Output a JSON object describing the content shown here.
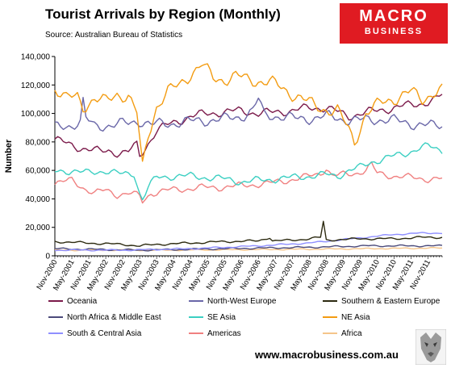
{
  "brand": {
    "line1": "MACRO",
    "line2": "BUSINESS",
    "line3": "",
    "website": "www.macrobusiness.com.au"
  },
  "chart_data": {
    "type": "line",
    "title": "Tourist Arrivals by Region (Monthly)",
    "subtitle": "Source: Australian Bureau of Statistics",
    "ylabel": "Number",
    "xlabel": "",
    "ylim": [
      0,
      140000
    ],
    "yticks": [
      0,
      20000,
      40000,
      60000,
      80000,
      100000,
      120000,
      140000
    ],
    "ytick_labels": [
      "0",
      "20,000",
      "40,000",
      "60,000",
      "80,000",
      "100,000",
      "120,000",
      "140,000"
    ],
    "xticks": [
      "Nov-2000",
      "May-2001",
      "Nov-2001",
      "May-2002",
      "Nov-2002",
      "May-2003",
      "Nov-2003",
      "May-2004",
      "Nov-2004",
      "May-2005",
      "Nov-2005",
      "May-2006",
      "Nov-2006",
      "May-2007",
      "Nov-2007",
      "May-2008",
      "Nov-2008",
      "May-2009",
      "Nov-2009",
      "May-2010",
      "Nov-2010",
      "May-2011",
      "Nov-2011"
    ],
    "grid": false,
    "legend_position": "bottom",
    "series": [
      {
        "name": "Oceania",
        "color": "#7b1a4a",
        "anchors": [
          [
            0,
            82000
          ],
          [
            5,
            78000
          ],
          [
            9,
            76000
          ],
          [
            12,
            75000
          ],
          [
            16,
            73000
          ],
          [
            19,
            74000
          ],
          [
            23,
            72000
          ],
          [
            26,
            73000
          ],
          [
            29,
            78000
          ],
          [
            30,
            70000
          ],
          [
            33,
            79000
          ],
          [
            36,
            88000
          ],
          [
            40,
            92000
          ],
          [
            44,
            95000
          ],
          [
            48,
            98000
          ],
          [
            54,
            100000
          ],
          [
            60,
            101000
          ],
          [
            66,
            102000
          ],
          [
            72,
            100000
          ],
          [
            78,
            101000
          ],
          [
            84,
            102000
          ],
          [
            90,
            104000
          ],
          [
            96,
            104000
          ],
          [
            100,
            101000
          ],
          [
            104,
            98000
          ],
          [
            108,
            100000
          ],
          [
            114,
            102000
          ],
          [
            120,
            104000
          ],
          [
            126,
            106000
          ],
          [
            132,
            108000
          ],
          [
            135,
            110000
          ],
          [
            137,
            113000
          ]
        ],
        "amp": 3500
      },
      {
        "name": "North-West Europe",
        "color": "#6a67a8",
        "anchors": [
          [
            0,
            90000
          ],
          [
            6,
            92000
          ],
          [
            9,
            94000
          ],
          [
            10,
            108000
          ],
          [
            11,
            96000
          ],
          [
            14,
            91000
          ],
          [
            20,
            92000
          ],
          [
            26,
            93000
          ],
          [
            30,
            95000
          ],
          [
            34,
            92000
          ],
          [
            40,
            93000
          ],
          [
            46,
            94000
          ],
          [
            52,
            95000
          ],
          [
            60,
            96000
          ],
          [
            66,
            98000
          ],
          [
            70,
            102000
          ],
          [
            72,
            110000
          ],
          [
            74,
            99000
          ],
          [
            80,
            98000
          ],
          [
            86,
            96000
          ],
          [
            92,
            97000
          ],
          [
            96,
            98000
          ],
          [
            102,
            96000
          ],
          [
            108,
            95000
          ],
          [
            114,
            96000
          ],
          [
            120,
            95000
          ],
          [
            126,
            93000
          ],
          [
            130,
            92000
          ],
          [
            134,
            91000
          ],
          [
            137,
            92000
          ]
        ],
        "amp": 4500
      },
      {
        "name": "Southern & Eastern Europe",
        "color": "#2c2a10",
        "anchors": [
          [
            0,
            10000
          ],
          [
            12,
            9000
          ],
          [
            24,
            8000
          ],
          [
            30,
            7000
          ],
          [
            36,
            8000
          ],
          [
            48,
            9000
          ],
          [
            60,
            10000
          ],
          [
            72,
            10500
          ],
          [
            76,
            13000
          ],
          [
            77,
            10500
          ],
          [
            84,
            11000
          ],
          [
            90,
            12000
          ],
          [
            94,
            13000
          ],
          [
            95,
            24000
          ],
          [
            96,
            11000
          ],
          [
            108,
            12000
          ],
          [
            120,
            12000
          ],
          [
            130,
            13000
          ],
          [
            137,
            13000
          ]
        ],
        "amp": 900
      },
      {
        "name": "NE Asia",
        "color": "#f39c12",
        "anchors": [
          [
            0,
            118000
          ],
          [
            4,
            110000
          ],
          [
            8,
            112000
          ],
          [
            10,
            105000
          ],
          [
            14,
            110000
          ],
          [
            18,
            108000
          ],
          [
            22,
            114000
          ],
          [
            26,
            112000
          ],
          [
            29,
            100000
          ],
          [
            31,
            62000
          ],
          [
            33,
            85000
          ],
          [
            36,
            105000
          ],
          [
            40,
            115000
          ],
          [
            44,
            120000
          ],
          [
            48,
            128000
          ],
          [
            52,
            134000
          ],
          [
            56,
            125000
          ],
          [
            60,
            124000
          ],
          [
            64,
            126000
          ],
          [
            68,
            124000
          ],
          [
            72,
            123000
          ],
          [
            76,
            122000
          ],
          [
            80,
            118000
          ],
          [
            86,
            112000
          ],
          [
            92,
            105000
          ],
          [
            96,
            103000
          ],
          [
            100,
            102000
          ],
          [
            104,
            88000
          ],
          [
            106,
            80000
          ],
          [
            110,
            100000
          ],
          [
            116,
            108000
          ],
          [
            122,
            112000
          ],
          [
            126,
            115000
          ],
          [
            130,
            110000
          ],
          [
            134,
            115000
          ],
          [
            137,
            116000
          ]
        ],
        "amp": 5500
      },
      {
        "name": "North Africa & Middle East",
        "color": "#4b4a7a",
        "anchors": [
          [
            0,
            5000
          ],
          [
            30,
            4000
          ],
          [
            60,
            5000
          ],
          [
            90,
            6000
          ],
          [
            110,
            7000
          ],
          [
            137,
            7000
          ]
        ],
        "amp": 700
      },
      {
        "name": "SE Asia",
        "color": "#3bcfc2",
        "anchors": [
          [
            0,
            59000
          ],
          [
            6,
            60000
          ],
          [
            12,
            58000
          ],
          [
            18,
            60000
          ],
          [
            24,
            57000
          ],
          [
            28,
            58000
          ],
          [
            30,
            44000
          ],
          [
            31,
            40000
          ],
          [
            33,
            48000
          ],
          [
            36,
            55000
          ],
          [
            42,
            56000
          ],
          [
            48,
            56000
          ],
          [
            54,
            55000
          ],
          [
            60,
            54000
          ],
          [
            66,
            52000
          ],
          [
            72,
            53000
          ],
          [
            78,
            54000
          ],
          [
            84,
            55000
          ],
          [
            90,
            56000
          ],
          [
            96,
            57000
          ],
          [
            100,
            56000
          ],
          [
            104,
            60000
          ],
          [
            108,
            62000
          ],
          [
            112,
            66000
          ],
          [
            116,
            68000
          ],
          [
            120,
            70000
          ],
          [
            124,
            72000
          ],
          [
            128,
            75000
          ],
          [
            132,
            77000
          ],
          [
            137,
            74000
          ]
        ],
        "amp": 3000
      },
      {
        "name": "South & Central Asia",
        "color": "#8f8fff",
        "anchors": [
          [
            0,
            4000
          ],
          [
            24,
            4000
          ],
          [
            48,
            5000
          ],
          [
            72,
            7000
          ],
          [
            90,
            9000
          ],
          [
            100,
            11000
          ],
          [
            110,
            13000
          ],
          [
            120,
            15000
          ],
          [
            130,
            16000
          ],
          [
            137,
            16000
          ]
        ],
        "amp": 600
      },
      {
        "name": "Americas",
        "color": "#f08080",
        "anchors": [
          [
            0,
            51000
          ],
          [
            6,
            53000
          ],
          [
            10,
            48000
          ],
          [
            14,
            44000
          ],
          [
            18,
            46000
          ],
          [
            22,
            43000
          ],
          [
            26,
            44000
          ],
          [
            30,
            42000
          ],
          [
            31,
            38000
          ],
          [
            34,
            44000
          ],
          [
            40,
            46000
          ],
          [
            46,
            47000
          ],
          [
            52,
            48000
          ],
          [
            58,
            48000
          ],
          [
            64,
            49000
          ],
          [
            70,
            50000
          ],
          [
            76,
            51000
          ],
          [
            82,
            53000
          ],
          [
            88,
            55000
          ],
          [
            94,
            58000
          ],
          [
            96,
            62000
          ],
          [
            98,
            56000
          ],
          [
            102,
            57000
          ],
          [
            106,
            58000
          ],
          [
            110,
            60000
          ],
          [
            112,
            64000
          ],
          [
            114,
            58000
          ],
          [
            120,
            56000
          ],
          [
            126,
            55000
          ],
          [
            132,
            54000
          ],
          [
            137,
            54000
          ]
        ],
        "amp": 2800
      },
      {
        "name": "Africa",
        "color": "#f5c58a",
        "anchors": [
          [
            0,
            4000
          ],
          [
            40,
            4000
          ],
          [
            80,
            4500
          ],
          [
            110,
            5000
          ],
          [
            137,
            5500
          ]
        ],
        "amp": 500
      }
    ]
  }
}
